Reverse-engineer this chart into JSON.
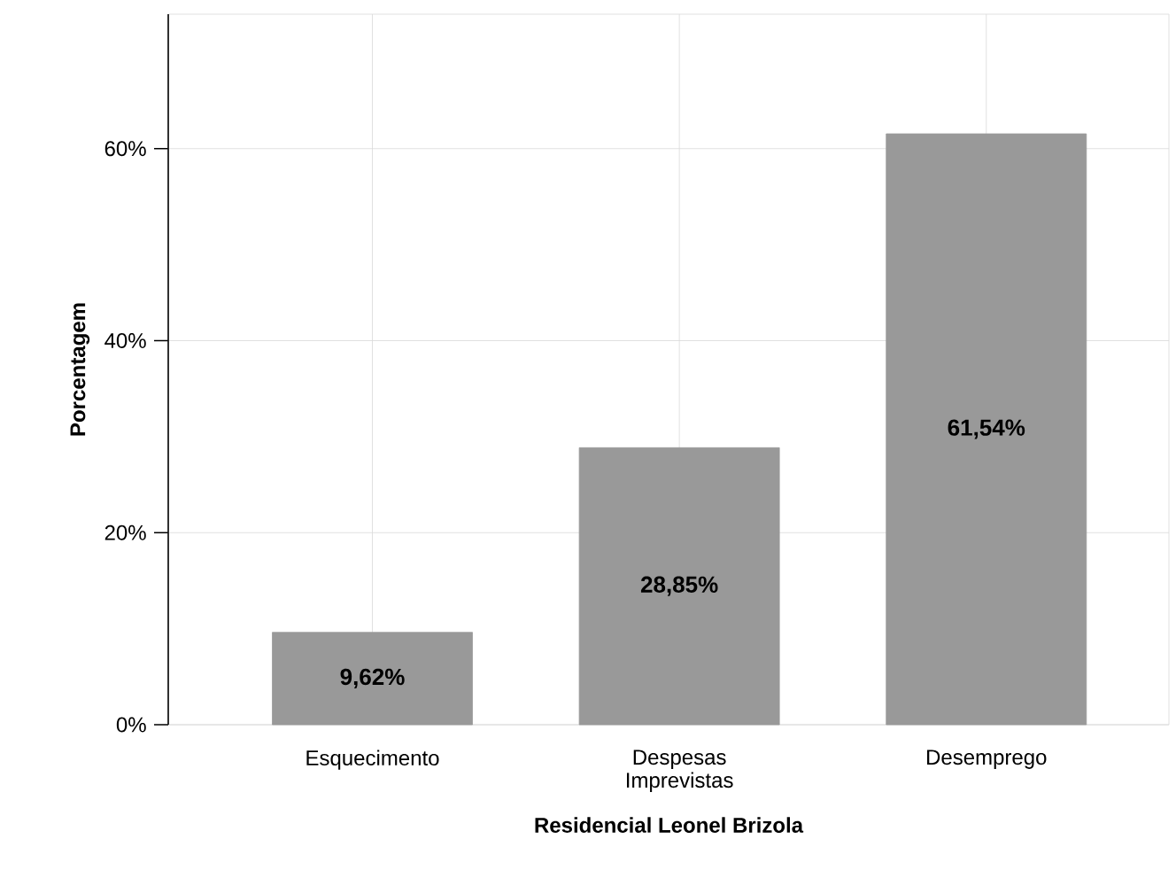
{
  "chart_data": {
    "type": "bar",
    "xlabel": "Residencial Leonel Brizola",
    "ylabel": "Porcentagem",
    "categories": [
      "Esquecimento",
      "Despesas Imprevistas",
      "Desemprego"
    ],
    "values": [
      9.62,
      28.85,
      61.54
    ],
    "value_labels": [
      "9,62%",
      "28,85%",
      "61,54%"
    ],
    "color": "#999999",
    "ylim": [
      0,
      74
    ],
    "yticks": [
      {
        "value": 0,
        "label": "0%"
      },
      {
        "value": 20,
        "label": "20%"
      },
      {
        "value": 40,
        "label": "40%"
      },
      {
        "value": 60,
        "label": "60%"
      }
    ],
    "grid": true
  }
}
